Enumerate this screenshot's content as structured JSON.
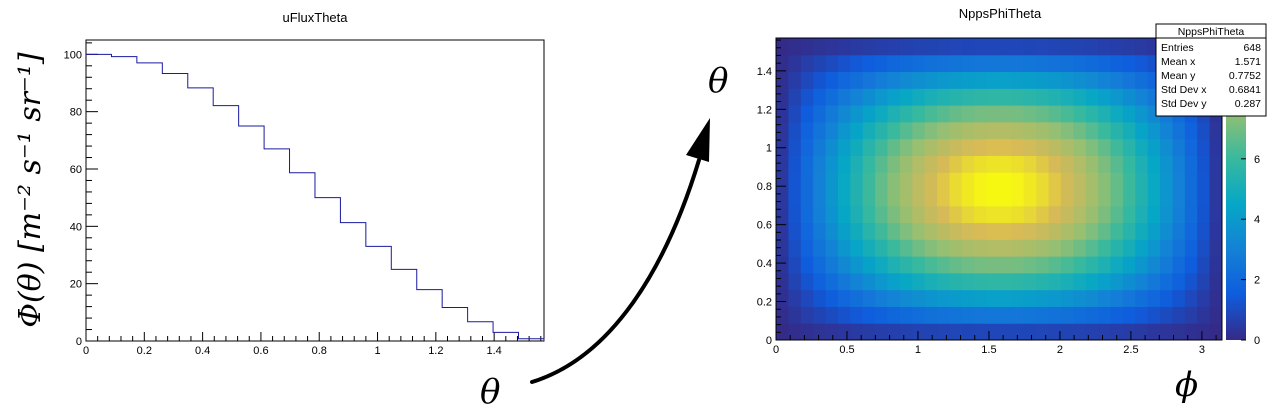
{
  "chart_data": [
    {
      "type": "bar",
      "title": "uFluxTheta",
      "ylabel": "Φ(θ) [m⁻² s⁻¹ sr⁻¹]",
      "xlabel": "",
      "xlim": [
        0,
        1.571
      ],
      "ylim": [
        0,
        105
      ],
      "grid": false,
      "style": "step-histogram",
      "line_color": "#1a1aa0",
      "bin_edges": [
        0,
        0.0873,
        0.1745,
        0.2618,
        0.3491,
        0.4363,
        0.5236,
        0.6109,
        0.6981,
        0.7854,
        0.8727,
        0.9599,
        1.0472,
        1.1345,
        1.2217,
        1.309,
        1.3963,
        1.4835,
        1.5708
      ],
      "values": [
        100,
        99.2,
        97,
        93.3,
        88.3,
        82.1,
        75,
        67,
        58.7,
        50,
        41.3,
        33,
        25,
        17.9,
        11.7,
        6.7,
        3,
        0.8
      ],
      "x_ticks": [
        "0",
        "0.2",
        "0.4",
        "0.6",
        "0.8",
        "1",
        "1.2",
        "1.4"
      ],
      "y_ticks": [
        "0",
        "20",
        "40",
        "60",
        "80",
        "100"
      ]
    },
    {
      "type": "heatmap",
      "title": "NppsPhiTheta",
      "xlabel": "ϕ",
      "ylabel": "θ",
      "xlim": [
        0,
        3.1416
      ],
      "ylim": [
        0,
        1.5708
      ],
      "zlim": [
        0,
        10
      ],
      "nx": 36,
      "ny": 18,
      "colormap": "parula",
      "x_ticks": [
        "0",
        "0.5",
        "1",
        "1.5",
        "2",
        "2.5",
        "3"
      ],
      "y_ticks": [
        "0",
        "0.2",
        "0.4",
        "0.6",
        "0.8",
        "1",
        "1.2",
        "1.4"
      ],
      "z_ticks": [
        "0",
        "2",
        "4",
        "6",
        "8"
      ],
      "stats": {
        "name": "NppsPhiTheta",
        "rows": [
          {
            "label": "Entries",
            "value": "648"
          },
          {
            "label": "Mean x",
            "value": "1.571"
          },
          {
            "label": "Mean y",
            "value": "0.7752"
          },
          {
            "label": "Std Dev x",
            "value": "0.6841"
          },
          {
            "label": "Std Dev y",
            "value": "0.287"
          }
        ]
      }
    }
  ],
  "annotations": {
    "arrow_start_label": "θ"
  }
}
